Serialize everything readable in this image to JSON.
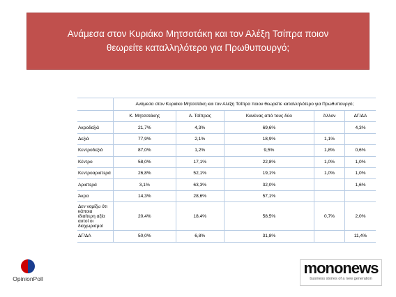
{
  "header": {
    "title": "Ανάμεσα στον Κυριάκο Μητσοτάκη και τον Αλέξη Τσίπρα ποιον θεωρείτε καταλληλότερο για Πρωθυπουργό;"
  },
  "table": {
    "title": "Ανάμεσα στον Κυριάκο Μητσοτάκη και τον Αλέξη Τσίπρα ποιον θεωρείτε καταλληλότερο για Πρωθυπουργό;",
    "columns": [
      "Κ. Μητσοτάκης",
      "Α. Τσίπρας",
      "Κανένας από τους δύο",
      "Άλλον",
      "ΔΓ/ΔΑ"
    ],
    "rows": [
      [
        "Ακροδεξιά",
        "21,7%",
        "4,3%",
        "69,6%",
        null,
        "4,3%"
      ],
      [
        "Δεξιά",
        "77,9%",
        "2,1%",
        "18,9%",
        "1,1%",
        null
      ],
      [
        "Κεντροδεξιά",
        "87,0%",
        "1,2%",
        "9,5%",
        "1,8%",
        "0,6%"
      ],
      [
        "Κέντρο",
        "58,0%",
        "17,1%",
        "22,8%",
        "1,0%",
        "1,0%"
      ],
      [
        "Κεντροαριστερά",
        "26,8%",
        "52,1%",
        "19,1%",
        "1,0%",
        "1,0%"
      ],
      [
        "Αριστερά",
        "3,1%",
        "63,3%",
        "32,0%",
        null,
        "1,6%"
      ],
      [
        "Άκρα",
        "14,3%",
        "28,6%",
        "57,1%",
        null,
        null
      ],
      [
        "Δεν νομίζω ότι κάποια ιδιαίτερη αξία αυτοί οι διαχωρισμοί",
        "20,4%",
        "18,4%",
        "58,5%",
        "0,7%",
        "2,0%"
      ],
      [
        "ΔΓ/ΔΑ",
        "50,0%",
        "6,8%",
        "31,8%",
        null,
        "11,4%"
      ]
    ]
  },
  "logos": {
    "left": "OpinionPoll",
    "right": "mononews",
    "right_tagline": "business stories of a new generation"
  }
}
